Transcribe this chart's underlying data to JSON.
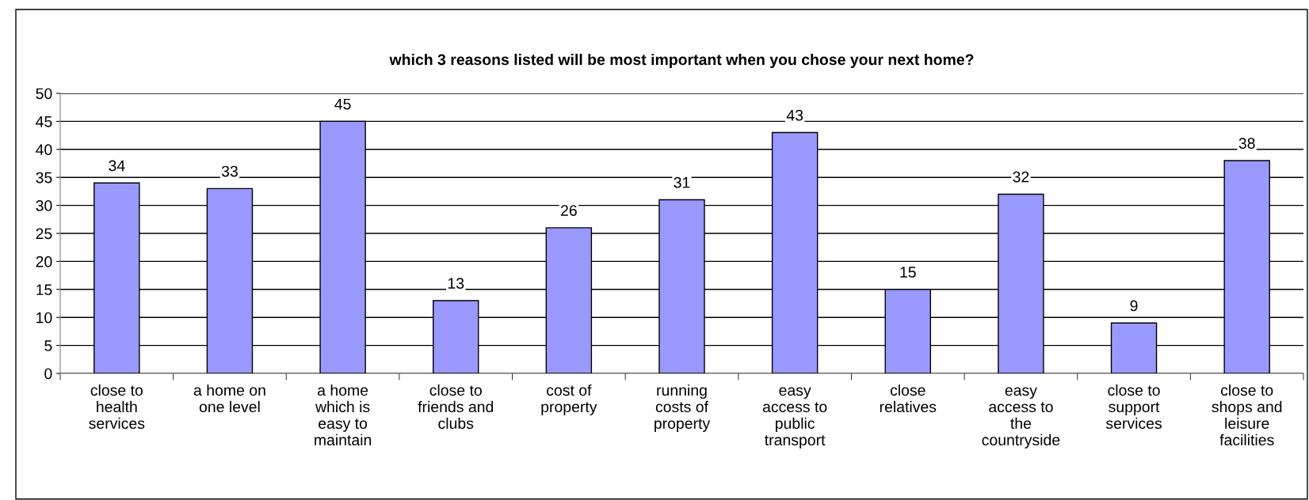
{
  "chart_data": {
    "type": "bar",
    "title": "which 3 reasons listed will be most important when you chose your next home?",
    "categories": [
      "close to\nhealth\nservices",
      "a home on\none level",
      "a home\nwhich is\neasy to\nmaintain",
      "close to\nfriends and\nclubs",
      "cost of\nproperty",
      "running\ncosts of\nproperty",
      "easy\naccess to\npublic\ntransport",
      "close\nrelatives",
      "easy\naccess to\nthe\ncountryside",
      "close to\nsupport\nservices",
      "close to\nshops and\nleisure\nfacilities"
    ],
    "values": [
      34,
      33,
      45,
      13,
      26,
      31,
      43,
      15,
      32,
      9,
      38
    ],
    "color": "#9999ff",
    "ylim": [
      0,
      50
    ],
    "yticks": [
      0,
      5,
      10,
      15,
      20,
      25,
      30,
      35,
      40,
      45,
      50
    ],
    "grid": "y",
    "data_labels": true,
    "legend": false
  }
}
